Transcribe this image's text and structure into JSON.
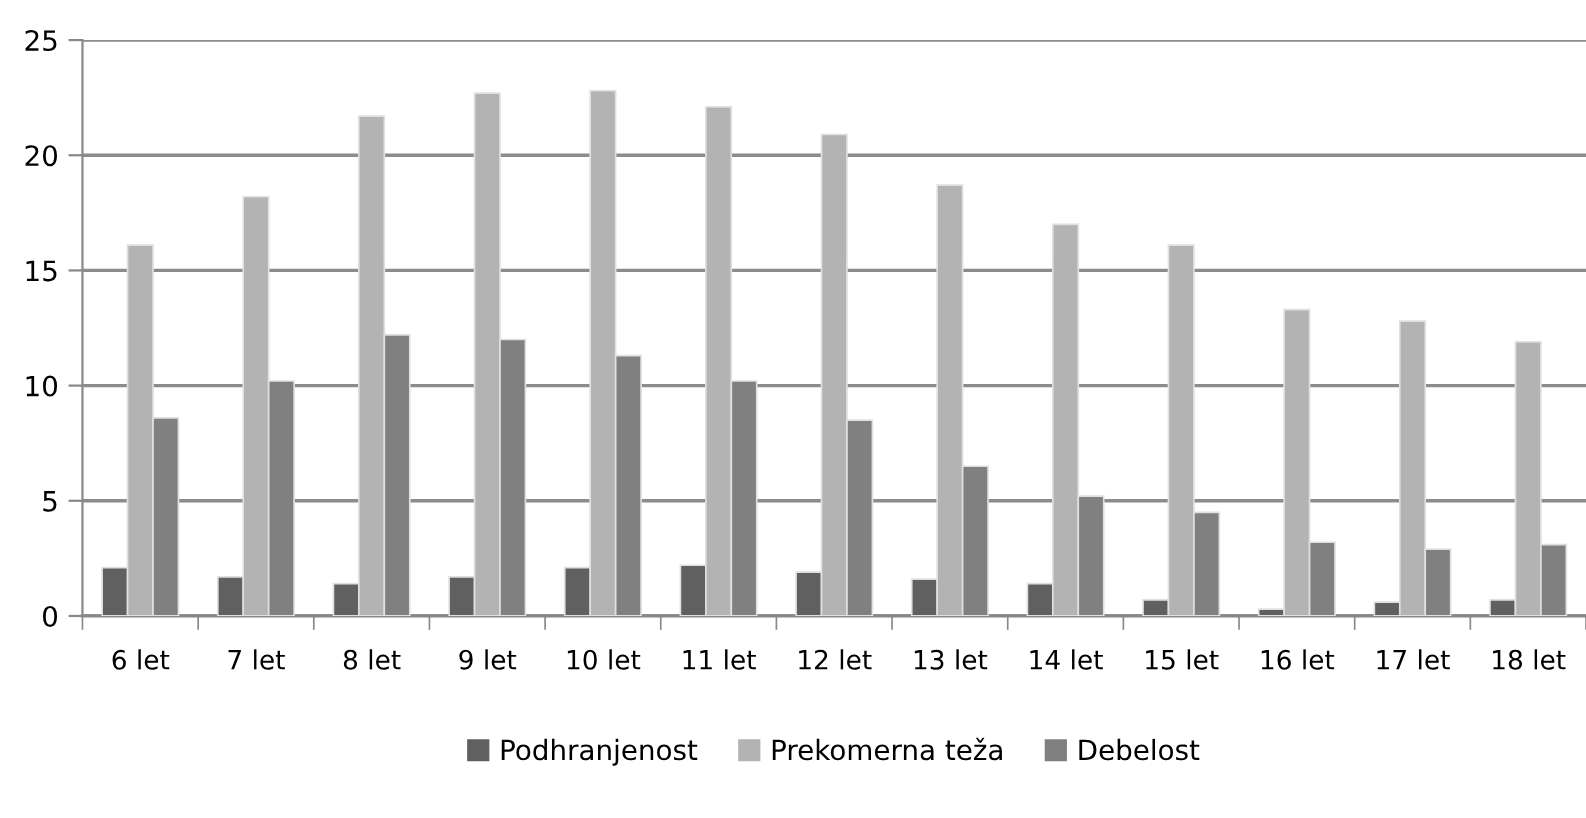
{
  "chart_data": {
    "type": "bar",
    "categories": [
      "6 let",
      "7 let",
      "8 let",
      "9 let",
      "10 let",
      "11 let",
      "12 let",
      "13 let",
      "14 let",
      "15 let",
      "16 let",
      "17 let",
      "18 let"
    ],
    "series": [
      {
        "name": "Podhranjenost",
        "color": "#606060",
        "values": [
          2.1,
          1.7,
          1.4,
          1.7,
          2.1,
          2.2,
          1.9,
          1.6,
          1.4,
          0.7,
          0.3,
          0.6,
          0.7
        ]
      },
      {
        "name": "Prekomerna teža",
        "color": "#b3b3b3",
        "values": [
          16.1,
          18.2,
          21.7,
          22.7,
          22.8,
          22.1,
          20.9,
          18.7,
          17.0,
          16.1,
          13.3,
          12.8,
          11.9
        ]
      },
      {
        "name": "Debelost",
        "color": "#808080",
        "values": [
          8.6,
          10.2,
          12.2,
          12.0,
          11.3,
          10.2,
          8.5,
          6.5,
          5.2,
          4.5,
          3.2,
          2.9,
          3.1
        ]
      }
    ],
    "ylim": [
      0,
      25
    ],
    "yticks": [
      0,
      5,
      10,
      15,
      20,
      25
    ],
    "grid": "y",
    "legend": "bottom"
  }
}
